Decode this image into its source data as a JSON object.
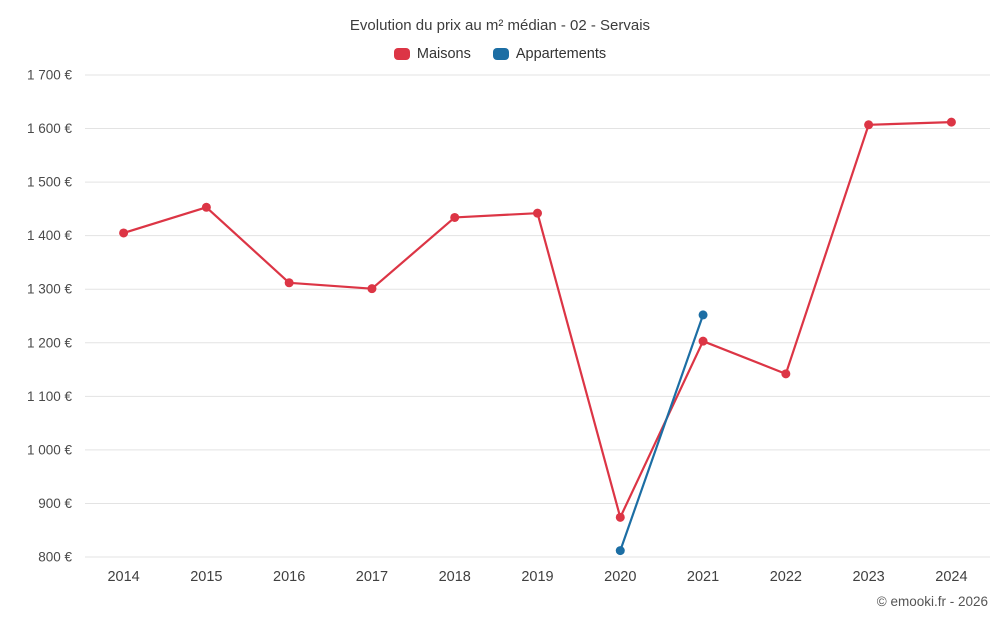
{
  "header": {
    "title": "Evolution du prix au m² médian - 02 - Servais"
  },
  "legend": [
    {
      "label": "Maisons",
      "color": "#dc3545"
    },
    {
      "label": "Appartements",
      "color": "#1c6ea4"
    }
  ],
  "footer": {
    "copyright": "© emooki.fr - 2026"
  },
  "chart_data": {
    "type": "line",
    "title": "Evolution du prix au m² médian - 02 - Servais",
    "x": [
      2014,
      2015,
      2016,
      2017,
      2018,
      2019,
      2020,
      2021,
      2022,
      2023,
      2024
    ],
    "series": [
      {
        "name": "Maisons",
        "color": "#dc3545",
        "values": [
          1405,
          1453,
          1312,
          1301,
          1434,
          1442,
          874,
          1203,
          1142,
          1607,
          1612
        ]
      },
      {
        "name": "Appartements",
        "color": "#1c6ea4",
        "values": [
          null,
          null,
          null,
          null,
          null,
          null,
          812,
          1252,
          null,
          null,
          null
        ]
      }
    ],
    "ylim": [
      800,
      1700
    ],
    "ytick_step": 100,
    "y_suffix": "€",
    "grid": "horizontal",
    "gridline_color": "#e3e3e3",
    "legend_position": "top",
    "marker_radius": 4.5,
    "line_width": 2.2
  }
}
